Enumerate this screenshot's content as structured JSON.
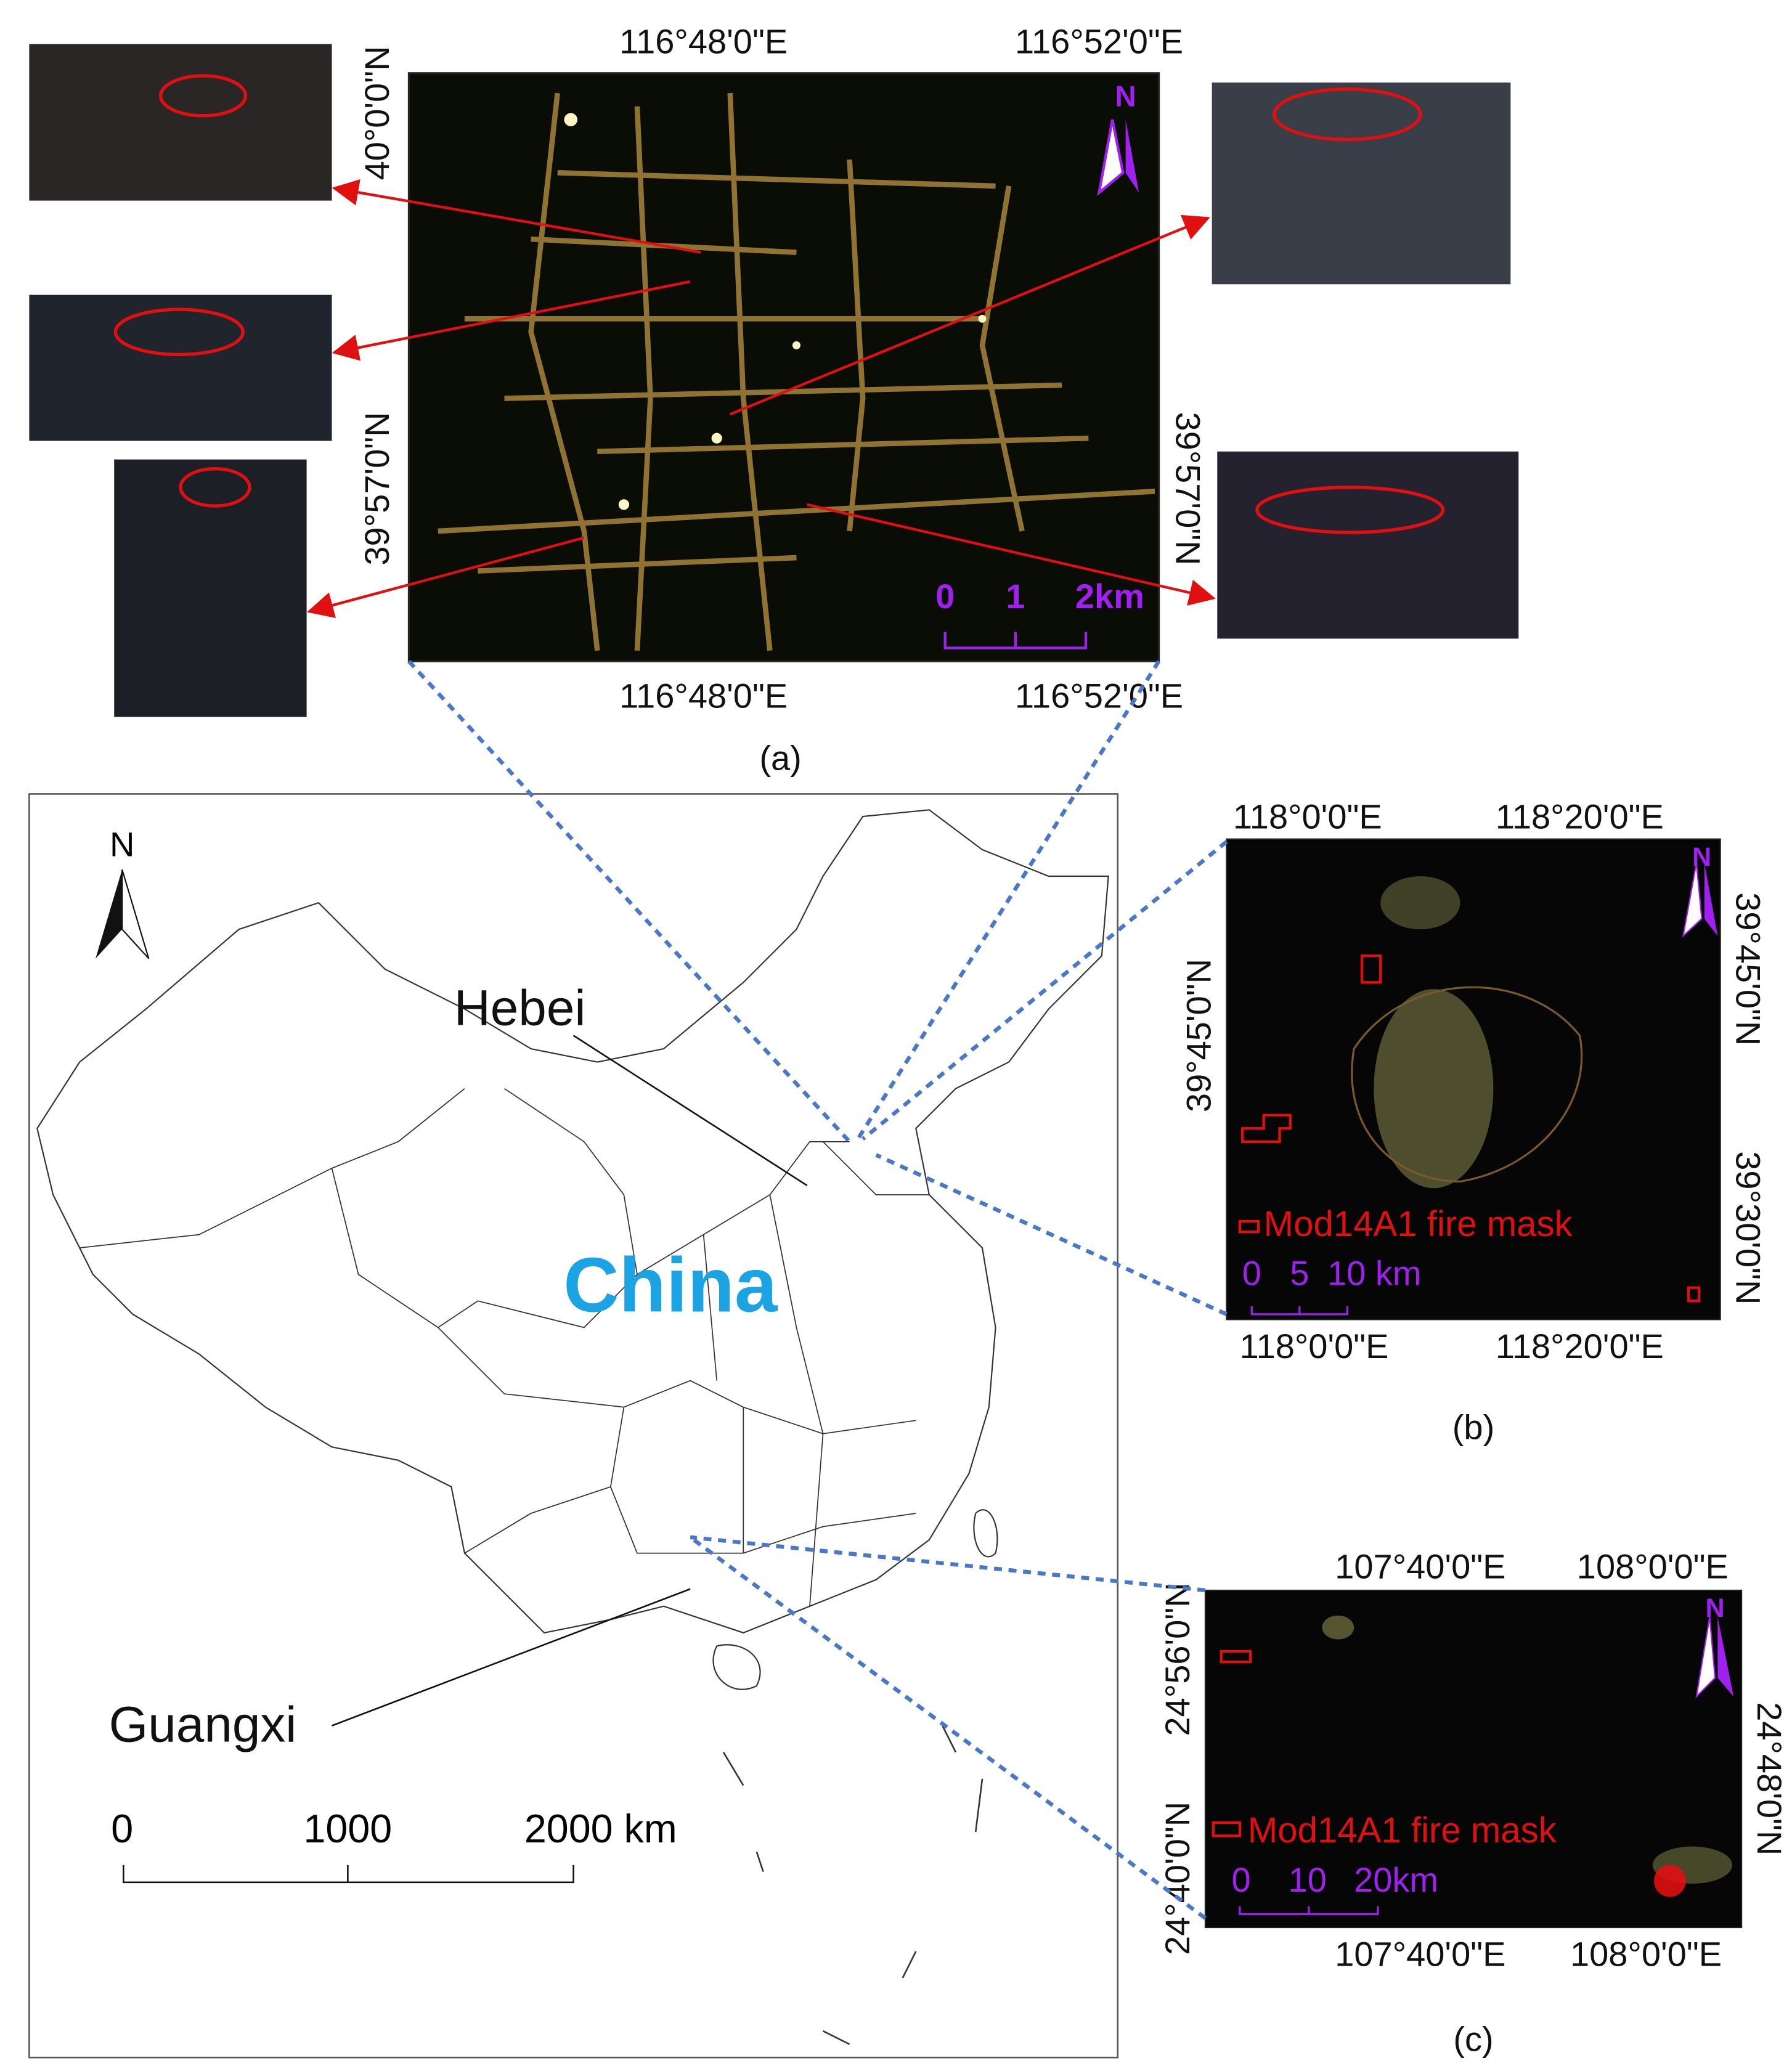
{
  "panel_a": {
    "label": "(a)",
    "top_labels": [
      "116°48'0\"E",
      "116°52'0\"E"
    ],
    "bottom_labels": [
      "116°48'0\"E",
      "116°52'0\"E"
    ],
    "left_labels": [
      "40°0'0\"N",
      "39°57'0\"N"
    ],
    "right_labels": [
      "39°57'0\"N"
    ],
    "north": "N",
    "scale_labels": [
      "0",
      "1",
      "2km"
    ]
  },
  "panel_b": {
    "label": "(b)",
    "top_labels": [
      "118°0'0\"E",
      "118°20'0\"E"
    ],
    "bottom_labels": [
      "118°0'0\"E",
      "118°20'0\"E"
    ],
    "left_labels": [
      "39°45'0\"N"
    ],
    "right_labels": [
      "39°45'0\"N",
      "39°30'0\"N"
    ],
    "north": "N",
    "legend": "Mod14A1 fire mask",
    "scale_labels": [
      "0",
      "5",
      "10 km"
    ]
  },
  "panel_c": {
    "label": "(c)",
    "top_labels": [
      "107°40'0\"E",
      "108°0'0\"E"
    ],
    "bottom_labels": [
      "107°40'0\"E",
      "108°0'0\"E"
    ],
    "left_labels": [
      "24°56'0\"N",
      "24°40'0\"N"
    ],
    "right_labels": [
      "24°48'0\"N"
    ],
    "north": "N",
    "legend": "Mod14A1 fire mask",
    "scale_labels": [
      "0",
      "10",
      "20km"
    ]
  },
  "overview": {
    "north": "N",
    "labels": [
      "Hebei",
      "Guangxi"
    ],
    "country": "China",
    "scale_labels": [
      "0",
      "1000",
      "2000 km"
    ]
  }
}
